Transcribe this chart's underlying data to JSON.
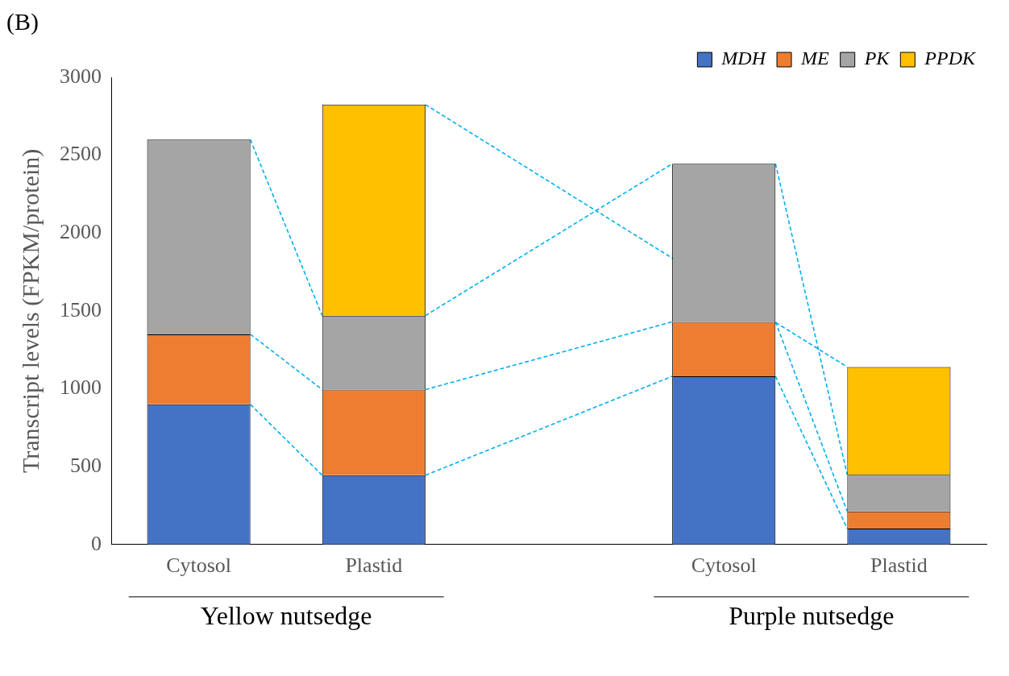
{
  "chart_data": {
    "type": "bar",
    "title": "(B)",
    "ylabel": "Transcript levels (FPKM/protein)",
    "stacked": true,
    "categories": [
      "Cytosol",
      "Plastid",
      null,
      "Cytosol",
      "Plastid"
    ],
    "series": [
      {
        "name": "MDH",
        "color": "#4472c4",
        "values": [
          900,
          445,
          null,
          1080,
          102
        ]
      },
      {
        "name": "ME",
        "color": "#ed7d31",
        "values": [
          450,
          550,
          null,
          350,
          110
        ]
      },
      {
        "name": "PK",
        "color": "#a5a5a5",
        "values": [
          1250,
          475,
          null,
          1015,
          236
        ]
      },
      {
        "name": "PPDK",
        "color": "#ffc000",
        "values": [
          null,
          1355,
          null,
          null,
          692
        ]
      }
    ],
    "annotations": [
      "Yellow nutsedge",
      "Purple nutsedge"
    ],
    "ylim": [
      0,
      3000
    ],
    "yticks": [
      0,
      500,
      1000,
      1500,
      2000,
      2500,
      3000
    ],
    "grid": false,
    "legend": "top right"
  }
}
